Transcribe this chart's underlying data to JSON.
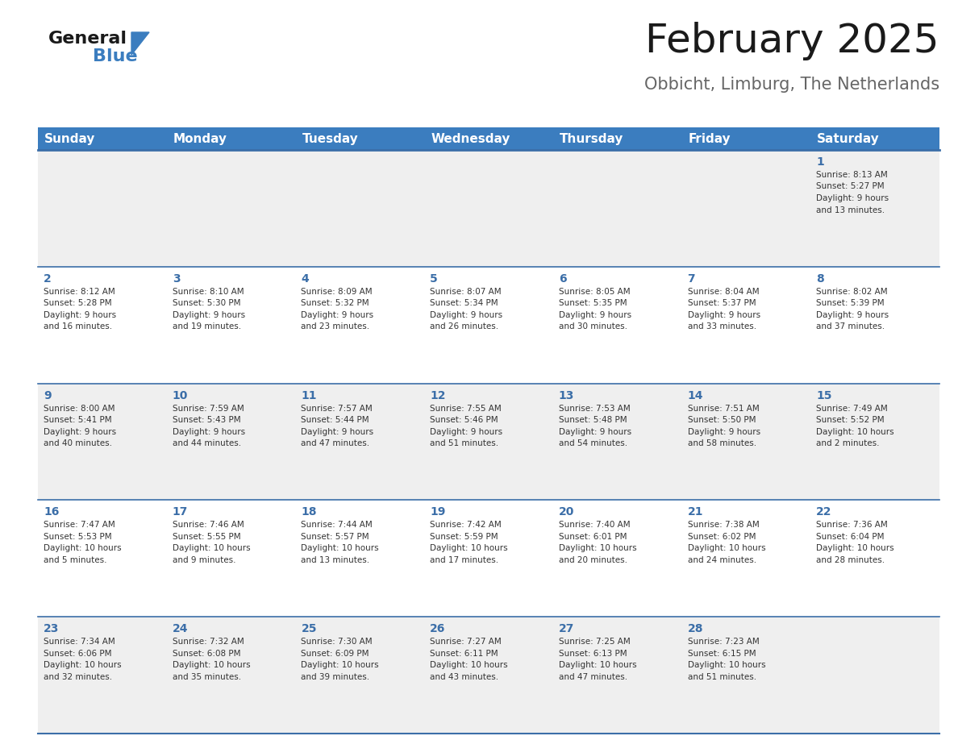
{
  "title": "February 2025",
  "subtitle": "Obbicht, Limburg, The Netherlands",
  "header_bg": "#3b7dbf",
  "header_text_color": "#ffffff",
  "cell_bg_light": "#efefef",
  "cell_bg_white": "#ffffff",
  "cell_border_color": "#3b6ea8",
  "day_number_color": "#3b6ea8",
  "info_text_color": "#333333",
  "days_of_week": [
    "Sunday",
    "Monday",
    "Tuesday",
    "Wednesday",
    "Thursday",
    "Friday",
    "Saturday"
  ],
  "calendar_data": [
    [
      null,
      null,
      null,
      null,
      null,
      null,
      {
        "day": 1,
        "sunrise": "8:13 AM",
        "sunset": "5:27 PM",
        "daylight": "9 hours and 13 minutes."
      }
    ],
    [
      {
        "day": 2,
        "sunrise": "8:12 AM",
        "sunset": "5:28 PM",
        "daylight": "9 hours and 16 minutes."
      },
      {
        "day": 3,
        "sunrise": "8:10 AM",
        "sunset": "5:30 PM",
        "daylight": "9 hours and 19 minutes."
      },
      {
        "day": 4,
        "sunrise": "8:09 AM",
        "sunset": "5:32 PM",
        "daylight": "9 hours and 23 minutes."
      },
      {
        "day": 5,
        "sunrise": "8:07 AM",
        "sunset": "5:34 PM",
        "daylight": "9 hours and 26 minutes."
      },
      {
        "day": 6,
        "sunrise": "8:05 AM",
        "sunset": "5:35 PM",
        "daylight": "9 hours and 30 minutes."
      },
      {
        "day": 7,
        "sunrise": "8:04 AM",
        "sunset": "5:37 PM",
        "daylight": "9 hours and 33 minutes."
      },
      {
        "day": 8,
        "sunrise": "8:02 AM",
        "sunset": "5:39 PM",
        "daylight": "9 hours and 37 minutes."
      }
    ],
    [
      {
        "day": 9,
        "sunrise": "8:00 AM",
        "sunset": "5:41 PM",
        "daylight": "9 hours and 40 minutes."
      },
      {
        "day": 10,
        "sunrise": "7:59 AM",
        "sunset": "5:43 PM",
        "daylight": "9 hours and 44 minutes."
      },
      {
        "day": 11,
        "sunrise": "7:57 AM",
        "sunset": "5:44 PM",
        "daylight": "9 hours and 47 minutes."
      },
      {
        "day": 12,
        "sunrise": "7:55 AM",
        "sunset": "5:46 PM",
        "daylight": "9 hours and 51 minutes."
      },
      {
        "day": 13,
        "sunrise": "7:53 AM",
        "sunset": "5:48 PM",
        "daylight": "9 hours and 54 minutes."
      },
      {
        "day": 14,
        "sunrise": "7:51 AM",
        "sunset": "5:50 PM",
        "daylight": "9 hours and 58 minutes."
      },
      {
        "day": 15,
        "sunrise": "7:49 AM",
        "sunset": "5:52 PM",
        "daylight": "10 hours and 2 minutes."
      }
    ],
    [
      {
        "day": 16,
        "sunrise": "7:47 AM",
        "sunset": "5:53 PM",
        "daylight": "10 hours and 5 minutes."
      },
      {
        "day": 17,
        "sunrise": "7:46 AM",
        "sunset": "5:55 PM",
        "daylight": "10 hours and 9 minutes."
      },
      {
        "day": 18,
        "sunrise": "7:44 AM",
        "sunset": "5:57 PM",
        "daylight": "10 hours and 13 minutes."
      },
      {
        "day": 19,
        "sunrise": "7:42 AM",
        "sunset": "5:59 PM",
        "daylight": "10 hours and 17 minutes."
      },
      {
        "day": 20,
        "sunrise": "7:40 AM",
        "sunset": "6:01 PM",
        "daylight": "10 hours and 20 minutes."
      },
      {
        "day": 21,
        "sunrise": "7:38 AM",
        "sunset": "6:02 PM",
        "daylight": "10 hours and 24 minutes."
      },
      {
        "day": 22,
        "sunrise": "7:36 AM",
        "sunset": "6:04 PM",
        "daylight": "10 hours and 28 minutes."
      }
    ],
    [
      {
        "day": 23,
        "sunrise": "7:34 AM",
        "sunset": "6:06 PM",
        "daylight": "10 hours and 32 minutes."
      },
      {
        "day": 24,
        "sunrise": "7:32 AM",
        "sunset": "6:08 PM",
        "daylight": "10 hours and 35 minutes."
      },
      {
        "day": 25,
        "sunrise": "7:30 AM",
        "sunset": "6:09 PM",
        "daylight": "10 hours and 39 minutes."
      },
      {
        "day": 26,
        "sunrise": "7:27 AM",
        "sunset": "6:11 PM",
        "daylight": "10 hours and 43 minutes."
      },
      {
        "day": 27,
        "sunrise": "7:25 AM",
        "sunset": "6:13 PM",
        "daylight": "10 hours and 47 minutes."
      },
      {
        "day": 28,
        "sunrise": "7:23 AM",
        "sunset": "6:15 PM",
        "daylight": "10 hours and 51 minutes."
      },
      null
    ]
  ],
  "logo_text1": "General",
  "logo_text2": "Blue",
  "logo_triangle_color": "#3b7dbf",
  "title_fontsize": 36,
  "subtitle_fontsize": 15,
  "header_fontsize": 11,
  "day_number_fontsize": 10,
  "cell_text_fontsize": 7.5
}
